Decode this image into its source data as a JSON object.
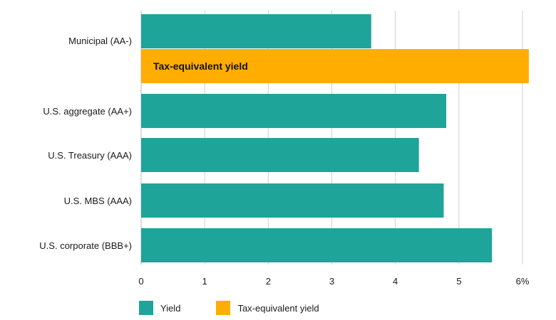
{
  "chart_data": {
    "type": "bar",
    "orientation": "horizontal",
    "categories": [
      "Municipal (AA-)",
      "U.S. aggregate (AA+)",
      "U.S. Treasury (AAA)",
      "U.S. MBS (AAA)",
      "U.S. corporate (BBB+)"
    ],
    "series": [
      {
        "name": "Yield",
        "values": [
          3.62,
          4.8,
          4.37,
          4.76,
          5.52
        ],
        "color": "#1fa49a"
      },
      {
        "name": "Tax-equivalent yield",
        "values": [
          6.1,
          null,
          null,
          null,
          null
        ],
        "color": "#ffad00"
      }
    ],
    "bar_label": "Tax-equivalent yield",
    "x_ticks": [
      "0",
      "1",
      "2",
      "3",
      "4",
      "5",
      "6%"
    ],
    "xlim": [
      0,
      6
    ],
    "grid": "vertical"
  }
}
